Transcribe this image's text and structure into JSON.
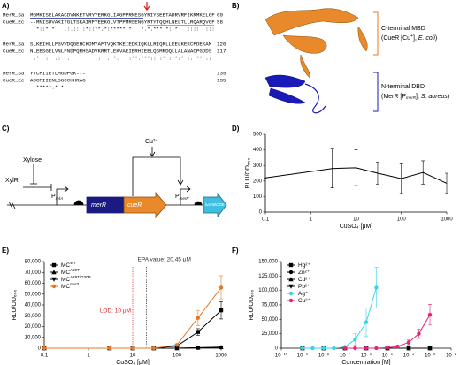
{
  "panel_labels": [
    "A)",
    "B)",
    "C)",
    "D)",
    "E)",
    "F)"
  ],
  "alignment": {
    "blocks": [
      {
        "rows": [
          {
            "name": "MerR_Sa",
            "seq": "MGMKISELAKACDVNKETVRYYERKGLIAGPPRNESGYRIYSEETADRVRFIKRMKELGF",
            "end": 60
          },
          {
            "name": "CueR_Ec",
            "seq": "--MNISDVAKITGLTSKAIRFYEEKGLVTPPMRSENGYRTYTQQHLNELTLLRQARQVGF",
            "end": 58
          }
        ],
        "marks": "  *::*:*   .:.::::*::**.*:*****:*   *.*.*** *::*   ::::  :::"
      },
      {
        "rows": [
          {
            "name": "MerR_Sa",
            "seq": "SLKEIHLLFGVVDQGEHCKDMYAFTVQKTKEIEDKIQKLLRIQRLLEELKEKCPDEKAM",
            "end": 120
          },
          {
            "name": "CueR_Ec",
            "seq": "NLEESGELVNLFNDPQRHSADVKRRTLEKVAEIERHIEELQSMRDQLLALANACPGDDS",
            "end": 117
          }
        ],
        "marks": " .*  :  .:  .   .    .:  . *.  .:**.***:: :* : *:* :. ** .:  "
      },
      {
        "rows": [
          {
            "name": "MerR_Sa",
            "seq": "YTCPIIETLMGDPGK---",
            "end": 135
          },
          {
            "name": "CueR_Ec",
            "seq": "ADCPIIENLSGCCHHRAG",
            "end": 135
          }
        ],
        "marks": "  *****.* *"
      }
    ]
  },
  "structure": {
    "c_title": "C-terminal MBD",
    "c_detail": [
      "(CueR [Cu",
      "+",
      "], ",
      "E. coli",
      ")"
    ],
    "n_title": "N-terminal DBD",
    "n_detail": [
      "(MerR [P",
      "merR",
      "], ",
      "S. aureus",
      ")"
    ]
  },
  "diagram": {
    "xylr": "XylR",
    "xylose": "Xylose",
    "cu": "Cu²⁺",
    "p1": [
      "P",
      "xylA"
    ],
    "gene": [
      "merR",
      "cueR"
    ],
    "p2": [
      "P",
      "merR"
    ],
    "reporter": "luxABCDE"
  },
  "chart_data": [
    {
      "type": "line",
      "xscale": "log",
      "xlim": [
        0.1,
        1000
      ],
      "xticks": [
        0.1,
        1,
        10,
        100,
        1000
      ],
      "ylim": [
        0,
        500
      ],
      "yticks": [
        0,
        100,
        200,
        300,
        400,
        500
      ],
      "xlabel": "CuSO₄ [μM]",
      "ylabel": "RLU/OD₆₀₀",
      "series": [
        {
          "color": "#000000",
          "marker": "none",
          "x": [
            0.1,
            3,
            10,
            30,
            100,
            300,
            1000
          ],
          "values": [
            220,
            280,
            285,
            250,
            215,
            255,
            185
          ],
          "errors": [
            0,
            125,
            115,
            70,
            95,
            75,
            65
          ]
        }
      ]
    },
    {
      "type": "line",
      "xscale": "log",
      "xlim": [
        0.1,
        1000
      ],
      "xticks": [
        0.1,
        1,
        10,
        100,
        1000
      ],
      "ylim": [
        0,
        80000
      ],
      "yticks": [
        0,
        {
          "value": 10000,
          "label": "10,000"
        },
        {
          "value": 20000,
          "label": "20,000"
        },
        {
          "value": 30000,
          "label": "30,000"
        },
        {
          "value": 40000,
          "label": "40,000"
        },
        {
          "value": 50000,
          "label": "50,000"
        },
        {
          "value": 60000,
          "label": "60,000"
        },
        {
          "value": 70000,
          "label": "70,000"
        },
        {
          "value": 80000,
          "label": "80,000"
        }
      ],
      "xlabel": "CuSO₄ [μM]",
      "ylabel": "RLU/OD₆₀₀",
      "annotations": [
        {
          "text": "EPA value: 20.45 μM",
          "x": 20.45,
          "color": "#333333"
        },
        {
          "text": "LOD: 10 μM",
          "x": 10,
          "color": "#d62728"
        }
      ],
      "series": [
        {
          "name": "MC",
          "name_sup": "WT",
          "color": "#000000",
          "marker": "square",
          "x": [
            0.1,
            3,
            10,
            30,
            100,
            300,
            1000
          ],
          "values": [
            0,
            0,
            0,
            0,
            2000,
            15000,
            35000
          ],
          "errors": [
            0,
            0,
            0,
            0,
            500,
            3000,
            8000
          ]
        },
        {
          "name": "MC",
          "name_sup": "A29T",
          "color": "#000000",
          "marker": "triangle-up",
          "x": [
            0.1,
            3,
            10,
            30,
            100,
            300,
            1000
          ],
          "values": [
            0,
            0,
            0,
            0,
            0,
            500,
            1000
          ],
          "errors": [
            0,
            0,
            0,
            0,
            0,
            0,
            0
          ]
        },
        {
          "name": "MC",
          "name_sup": "A29T/G30P",
          "color": "#000000",
          "marker": "triangle-down",
          "x": [
            0.1,
            3,
            10,
            30,
            100,
            300,
            1000
          ],
          "values": [
            0,
            0,
            0,
            0,
            0,
            300,
            500
          ],
          "errors": [
            0,
            0,
            0,
            0,
            0,
            0,
            0
          ]
        },
        {
          "name": "MC",
          "name_sup": "mut3",
          "color": "#e87722",
          "marker": "circle",
          "x": [
            0.1,
            3,
            10,
            30,
            100,
            300,
            1000
          ],
          "values": [
            0,
            0,
            0,
            0,
            3000,
            28000,
            56000
          ],
          "errors": [
            0,
            0,
            0,
            0,
            1000,
            7000,
            11000
          ]
        }
      ]
    },
    {
      "type": "line",
      "xscale": "log",
      "xlim": [
        1e-10,
        0.01
      ],
      "xticks": [
        {
          "value": 1e-10,
          "label": "10⁻¹⁰"
        },
        {
          "value": 1e-09,
          "label": "10⁻⁹"
        },
        {
          "value": 1e-08,
          "label": "10⁻⁸"
        },
        {
          "value": 1e-07,
          "label": "10⁻⁷"
        },
        {
          "value": 1e-06,
          "label": "10⁻⁶"
        },
        {
          "value": 1e-05,
          "label": "10⁻⁵"
        },
        {
          "value": 0.0001,
          "label": "10⁻⁴"
        },
        {
          "value": 0.001,
          "label": "10⁻³"
        },
        {
          "value": 0.01,
          "label": "10⁻²"
        }
      ],
      "ylim": [
        0,
        150000
      ],
      "yticks": [
        0,
        {
          "value": 25000,
          "label": "25,000"
        },
        {
          "value": 50000,
          "label": "50,000"
        },
        {
          "value": 75000,
          "label": "75,000"
        },
        {
          "value": 100000,
          "label": "100,000"
        },
        {
          "value": 125000,
          "label": "125,000"
        },
        {
          "value": 150000,
          "label": "150,000"
        }
      ],
      "xlabel": "Concentration [M]",
      "ylabel": "RLU/OD₆₀₀",
      "series": [
        {
          "name": "Hg²⁺",
          "color": "#000000",
          "marker": "square",
          "x": [
            1e-09,
            1e-08,
            1e-07,
            1e-06,
            1e-05,
            0.0001,
            0.001
          ],
          "values": [
            0,
            0,
            0,
            0,
            0,
            0,
            0
          ],
          "errors": [
            0,
            0,
            0,
            0,
            0,
            0,
            0
          ]
        },
        {
          "name": "Zn²⁺",
          "color": "#000000",
          "marker": "circle",
          "x": [
            1e-09,
            1e-08,
            1e-07,
            1e-06,
            1e-05,
            0.0001,
            0.001
          ],
          "values": [
            0,
            0,
            0,
            0,
            0,
            0,
            0
          ],
          "errors": [
            0,
            0,
            0,
            0,
            0,
            0,
            0
          ]
        },
        {
          "name": "Cd²⁺",
          "color": "#000000",
          "marker": "triangle-up",
          "x": [
            1e-09,
            1e-08,
            1e-07,
            1e-06,
            1e-05,
            0.0001,
            0.001
          ],
          "values": [
            0,
            0,
            0,
            0,
            0,
            0,
            0
          ],
          "errors": [
            0,
            0,
            0,
            0,
            0,
            0,
            0
          ]
        },
        {
          "name": "Pb²⁺",
          "color": "#000000",
          "marker": "triangle-down",
          "x": [
            1e-09,
            1e-08,
            1e-07,
            1e-06,
            1e-05,
            0.0001,
            0.001
          ],
          "values": [
            0,
            0,
            0,
            0,
            0,
            0,
            0
          ],
          "errors": [
            0,
            0,
            0,
            0,
            0,
            0,
            0
          ]
        },
        {
          "name": "Ag⁺",
          "color": "#33d6e8",
          "marker": "circle",
          "x": [
            1e-09,
            3e-09,
            1e-08,
            3e-08,
            1e-07,
            3e-07,
            1e-06,
            3e-06
          ],
          "values": [
            0,
            0,
            0,
            0,
            2000,
            15000,
            45000,
            105000
          ],
          "errors": [
            0,
            0,
            0,
            0,
            2000,
            10000,
            25000,
            35000
          ]
        },
        {
          "name": "Cu²⁺",
          "color": "#e0257a",
          "marker": "circle",
          "x": [
            1e-07,
            3e-07,
            1e-06,
            3e-06,
            1e-05,
            3e-05,
            0.0001,
            0.0003,
            0.001
          ],
          "values": [
            0,
            0,
            0,
            0,
            1000,
            3000,
            10000,
            25000,
            58000
          ],
          "errors": [
            0,
            0,
            0,
            0,
            500,
            1500,
            4000,
            8000,
            18000
          ]
        }
      ]
    }
  ]
}
